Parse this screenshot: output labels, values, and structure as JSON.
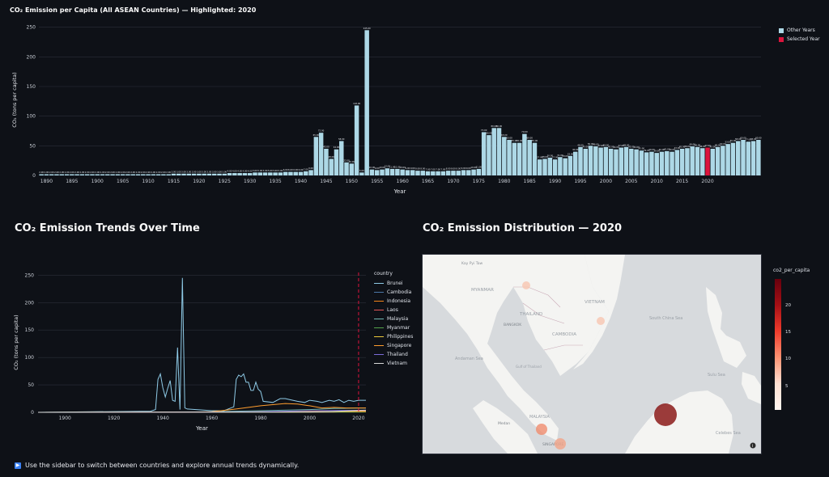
{
  "top_chart": {
    "title": "CO₂ Emission per Capita (All ASEAN Countries) — Highlighted: 2020",
    "ylabel": "CO₂ (tons per capita)",
    "xlabel": "Year",
    "legend": [
      "Other Years",
      "Selected Year"
    ]
  },
  "trend_section": {
    "heading": "CO₂ Emission Trends Over Time",
    "ylabel": "CO₂ (tons per capita)",
    "xlabel": "Year",
    "legend_title": "country",
    "countries": [
      "Brunei",
      "Cambodia",
      "Indonesia",
      "Laos",
      "Malaysia",
      "Myanmar",
      "Philippines",
      "Singapore",
      "Thailand",
      "Vietnam"
    ]
  },
  "map_section": {
    "heading": "CO₂ Emission Distribution — 2020",
    "colorbar_title": "co2_per_capita",
    "colorbar_ticks": [
      "20",
      "15",
      "10",
      "5"
    ],
    "place_labels": [
      "Kay Pyi Taw",
      "MYANMAR",
      "THAILAND",
      "BANGKOK",
      "VIETNAM",
      "CAMBODIA",
      "Andaman Sea",
      "Gulf of Thailand",
      "SINGAPORE",
      "Medan",
      "MALAYSIA",
      "Sulu Sea",
      "Celebes Sea",
      "South China Sea"
    ]
  },
  "footer": {
    "tip": "Use the sidebar to switch between countries and explore annual trends dynamically."
  },
  "colors": {
    "bar_other": "#add8e6",
    "bar_selected": "#dc143c",
    "background": "#0e1117",
    "grid": "#2b2f3a"
  },
  "chart_data": [
    {
      "type": "bar",
      "title": "CO₂ Emission per Capita (All ASEAN Countries) — Highlighted: 2020",
      "xlabel": "Year",
      "ylabel": "CO₂ (tons per capita)",
      "ylim": [
        0,
        255
      ],
      "yticks": [
        0,
        50,
        100,
        150,
        200,
        250
      ],
      "xticks": [
        1890,
        1895,
        1900,
        1905,
        1910,
        1915,
        1920,
        1925,
        1930,
        1935,
        1940,
        1945,
        1950,
        1955,
        1960,
        1965,
        1970,
        1975,
        1980,
        1985,
        1990,
        1995,
        2000,
        2005,
        2010,
        2015,
        2020
      ],
      "x_start": 1889,
      "x_end": 2023,
      "selected_year": 2020,
      "series": [
        {
          "name": "Other Years"
        },
        {
          "name": "Selected Year"
        }
      ],
      "values": [
        2,
        2,
        2,
        2,
        2,
        2,
        2,
        2,
        2,
        2,
        2,
        2,
        2,
        2,
        2,
        2,
        2,
        2,
        2,
        2,
        2,
        2,
        2,
        2,
        2,
        2,
        3,
        3,
        3,
        3,
        3,
        3,
        3,
        3,
        3,
        3,
        3,
        4,
        4,
        4,
        4,
        4,
        5,
        5,
        5,
        5,
        5,
        5,
        6,
        6,
        6,
        6,
        7,
        9,
        65,
        72,
        45,
        28,
        44,
        58,
        22,
        20,
        118,
        5,
        245,
        10,
        9,
        10,
        12,
        11,
        11,
        10,
        9,
        9,
        8,
        8,
        7,
        7,
        7,
        7,
        8,
        8,
        8,
        9,
        9,
        10,
        11,
        73,
        68,
        80,
        80,
        65,
        60,
        55,
        55,
        70,
        60,
        55,
        27,
        28,
        30,
        27,
        31,
        29,
        33,
        40,
        48,
        45,
        50,
        49,
        47,
        48,
        45,
        44,
        47,
        48,
        45,
        44,
        42,
        39,
        40,
        38,
        40,
        41,
        40,
        43,
        45,
        46,
        49,
        48,
        46,
        47,
        45,
        48,
        50,
        53,
        55,
        58,
        60,
        57,
        58,
        60
      ]
    },
    {
      "type": "line",
      "xlabel": "Year",
      "ylabel": "CO₂ (tons per capita)",
      "ylim": [
        0,
        255
      ],
      "xlim": [
        1889,
        2023
      ],
      "yticks": [
        0,
        50,
        100,
        150,
        200,
        250
      ],
      "xticks": [
        1900,
        1920,
        1940,
        1960,
        1980,
        2000,
        2020
      ],
      "highlight_year": 2020,
      "series": [
        {
          "name": "Brunei",
          "color": "#8ecae6",
          "x": [
            1889,
            1935,
            1937,
            1938,
            1939,
            1940,
            1941,
            1942,
            1943,
            1944,
            1945,
            1946,
            1947,
            1948,
            1949,
            1950,
            1960,
            1965,
            1969,
            1970,
            1971,
            1972,
            1973,
            1974,
            1975,
            1976,
            1977,
            1978,
            1979,
            1980,
            1981,
            1985,
            1988,
            1990,
            1992,
            1995,
            1998,
            2000,
            2003,
            2005,
            2008,
            2010,
            2012,
            2014,
            2016,
            2018,
            2020,
            2023
          ],
          "y": [
            0,
            2,
            5,
            60,
            70,
            45,
            28,
            44,
            58,
            22,
            20,
            118,
            5,
            245,
            8,
            6,
            3,
            3,
            10,
            60,
            68,
            65,
            70,
            55,
            55,
            40,
            40,
            55,
            42,
            38,
            20,
            18,
            25,
            25,
            23,
            20,
            18,
            22,
            20,
            18,
            22,
            20,
            23,
            18,
            22,
            20,
            22,
            22
          ]
        },
        {
          "name": "Cambodia",
          "color": "#4c78a8",
          "x": [
            1889,
            1990,
            2000,
            2010,
            2020,
            2023
          ],
          "y": [
            0,
            0.2,
            0.2,
            0.3,
            0.8,
            1.2
          ]
        },
        {
          "name": "Indonesia",
          "color": "#f58518",
          "x": [
            1889,
            1960,
            1980,
            2000,
            2010,
            2020,
            2023
          ],
          "y": [
            0,
            0.5,
            0.9,
            1.4,
            1.9,
            2.2,
            2.4
          ]
        },
        {
          "name": "Laos",
          "color": "#e45756",
          "x": [
            1889,
            1990,
            2010,
            2020,
            2023
          ],
          "y": [
            0,
            0.1,
            0.3,
            2.5,
            2.7
          ]
        },
        {
          "name": "Malaysia",
          "color": "#72b7b2",
          "x": [
            1889,
            1960,
            1980,
            2000,
            2010,
            2020,
            2023
          ],
          "y": [
            0,
            1,
            3,
            5,
            7,
            7.6,
            7.8
          ]
        },
        {
          "name": "Myanmar",
          "color": "#54a24b",
          "x": [
            1889,
            1960,
            2000,
            2020,
            2023
          ],
          "y": [
            0,
            0.2,
            0.3,
            0.6,
            0.7
          ]
        },
        {
          "name": "Philippines",
          "color": "#eeca3b",
          "x": [
            1889,
            1960,
            1980,
            2000,
            2020,
            2023
          ],
          "y": [
            0,
            0.4,
            0.9,
            0.9,
            1.3,
            1.4
          ]
        },
        {
          "name": "Singapore",
          "color": "#ff9d2e",
          "x": [
            1889,
            1950,
            1960,
            1970,
            1980,
            1985,
            1990,
            1995,
            2000,
            2005,
            2010,
            2015,
            2020,
            2023
          ],
          "y": [
            0,
            0.5,
            1,
            6,
            12,
            14,
            16,
            15,
            12,
            8,
            9,
            8,
            8,
            8
          ]
        },
        {
          "name": "Thailand",
          "color": "#7b6cd9",
          "x": [
            1889,
            1960,
            1980,
            2000,
            2020,
            2023
          ],
          "y": [
            0,
            0.3,
            1,
            3,
            3.7,
            3.8
          ]
        },
        {
          "name": "Vietnam",
          "color": "#d9d9d9",
          "x": [
            1889,
            1960,
            1990,
            2000,
            2010,
            2020,
            2023
          ],
          "y": [
            0,
            0.3,
            0.3,
            0.6,
            1.6,
            3.5,
            3.8
          ]
        }
      ]
    },
    {
      "type": "scatter",
      "title": "CO₂ Emission Distribution — 2020",
      "colorbar": "co2_per_capita",
      "color_range": [
        0,
        24
      ],
      "points": [
        {
          "name": "Brunei",
          "value": 22.0
        },
        {
          "name": "Singapore",
          "value": 8.0
        },
        {
          "name": "Malaysia",
          "value": 7.6
        },
        {
          "name": "Thailand",
          "value": 3.7
        },
        {
          "name": "Vietnam",
          "value": 3.5
        },
        {
          "name": "Laos",
          "value": 2.5
        },
        {
          "name": "Indonesia",
          "value": 2.2
        },
        {
          "name": "Philippines",
          "value": 1.3
        },
        {
          "name": "Cambodia",
          "value": 0.8
        },
        {
          "name": "Myanmar",
          "value": 0.6
        }
      ]
    }
  ]
}
